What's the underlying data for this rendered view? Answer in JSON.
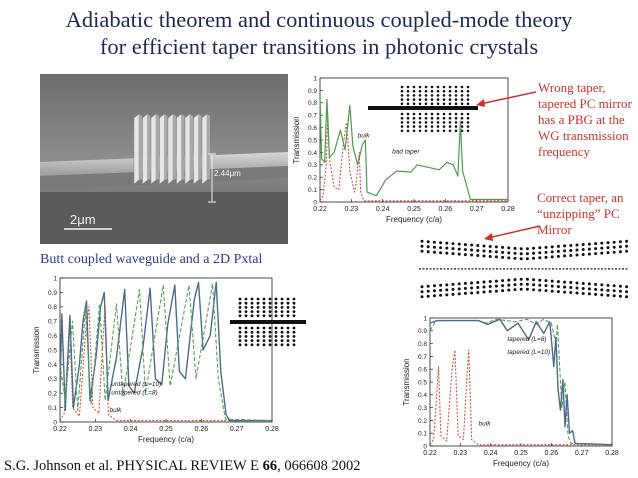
{
  "slide": {
    "title_line1": "Adiabatic theorem and continuous coupled-mode theory",
    "title_line2": "for efficient taper transitions in photonic crystals",
    "wrong_taper_note": [
      "Wrong taper,",
      "tapered PC mirror",
      "has a PBG at the",
      "WG transmission",
      "frequency"
    ],
    "correct_taper_note": [
      "Correct taper, an",
      "“unzipping” PC",
      "Mirror"
    ],
    "butt_coupled_caption": "Butt coupled waveguide and a 2D Pxtal",
    "citation_prefix": "S.G. Johnson et al. PHYSICAL REVIEW E ",
    "citation_volume": "66",
    "citation_suffix": ", 066608 2002"
  },
  "sem_image": {
    "scale_label": "2μm",
    "height_label": "2.44μm"
  },
  "colors": {
    "title": "#1b2a55",
    "note_red": "#c8322a",
    "caption_blue": "#2b3a8c",
    "bulk_curve": "#d0553a",
    "taper_curve": "#4f9a4f",
    "steel_curve": "#4a6c8c",
    "green_dashed": "#5aa05a"
  },
  "chart_data": [
    {
      "type": "line",
      "name_hint": "top",
      "xlabel": "Frequency  (c/a)",
      "ylabel": "Transmission",
      "xlim": [
        0.22,
        0.28
      ],
      "ylim": [
        0,
        1
      ],
      "x_ticks": [
        "0.22",
        "0.23",
        "0.24",
        "0.25",
        "0.26",
        "0.27",
        "0.28"
      ],
      "y_ticks": [
        "0",
        "0.1",
        "0.2",
        "0.3",
        "0.4",
        "0.5",
        "0.6",
        "0.7",
        "0.8",
        "0.9",
        "1"
      ],
      "annotations": [
        {
          "text": "bulk",
          "x": 0.232,
          "y": 0.52
        },
        {
          "text": "bad taper",
          "x": 0.243,
          "y": 0.39
        }
      ],
      "series": [
        {
          "style": "bulk",
          "points": [
            [
              0.22,
              0.01
            ],
            [
              0.221,
              0.05
            ],
            [
              0.222,
              0.3
            ],
            [
              0.2225,
              0.72
            ],
            [
              0.223,
              0.35
            ],
            [
              0.2245,
              0.12
            ],
            [
              0.226,
              0.1
            ],
            [
              0.2275,
              0.48
            ],
            [
              0.2285,
              0.64
            ],
            [
              0.2295,
              0.25
            ],
            [
              0.231,
              0.08
            ],
            [
              0.2315,
              0.14
            ],
            [
              0.2325,
              0.4
            ],
            [
              0.233,
              0.08
            ],
            [
              0.234,
              0.01
            ],
            [
              0.28,
              0.01
            ]
          ]
        },
        {
          "style": "taper",
          "points": [
            [
              0.22,
              0.85
            ],
            [
              0.2205,
              0.35
            ],
            [
              0.2215,
              0.32
            ],
            [
              0.2222,
              0.83
            ],
            [
              0.223,
              0.36
            ],
            [
              0.2245,
              0.4
            ],
            [
              0.2265,
              0.58
            ],
            [
              0.228,
              0.42
            ],
            [
              0.2295,
              0.78
            ],
            [
              0.2305,
              0.45
            ],
            [
              0.232,
              0.3
            ],
            [
              0.2335,
              0.46
            ],
            [
              0.2345,
              0.5
            ],
            [
              0.235,
              0.08
            ],
            [
              0.238,
              0.05
            ],
            [
              0.241,
              0.18
            ],
            [
              0.2445,
              0.25
            ],
            [
              0.249,
              0.24
            ],
            [
              0.251,
              0.3
            ],
            [
              0.2545,
              0.28
            ],
            [
              0.258,
              0.26
            ],
            [
              0.2605,
              0.32
            ],
            [
              0.2625,
              0.3
            ],
            [
              0.264,
              0.21
            ],
            [
              0.2648,
              0.65
            ],
            [
              0.2655,
              0.25
            ],
            [
              0.268,
              0.02
            ],
            [
              0.28,
              0.02
            ]
          ]
        }
      ]
    },
    {
      "type": "line",
      "name_hint": "bottom-left",
      "xlabel": "Frequency  (c/a)",
      "ylabel": "Transmission",
      "xlim": [
        0.22,
        0.28
      ],
      "ylim": [
        0,
        1
      ],
      "x_ticks": [
        "0.22",
        "0.23",
        "0.24",
        "0.25",
        "0.26",
        "0.27",
        "0.28"
      ],
      "y_ticks": [
        "0",
        "0.1",
        "0.2",
        "0.3",
        "0.4",
        "0.5",
        "0.6",
        "0.7",
        "0.8",
        "0.9",
        "1"
      ],
      "annotations": [
        {
          "text": "untapered (L=10)",
          "x": 0.2345,
          "y": 0.25
        },
        {
          "text": "untapered (L=8)",
          "x": 0.2345,
          "y": 0.19
        },
        {
          "text": "bulk",
          "x": 0.234,
          "y": 0.07
        }
      ],
      "series": [
        {
          "style": "bulk",
          "points": [
            [
              0.22,
              0.01
            ],
            [
              0.2212,
              0.06
            ],
            [
              0.2222,
              0.45
            ],
            [
              0.2228,
              0.66
            ],
            [
              0.2236,
              0.1
            ],
            [
              0.2255,
              0.04
            ],
            [
              0.2273,
              0.64
            ],
            [
              0.2282,
              0.8
            ],
            [
              0.2293,
              0.1
            ],
            [
              0.231,
              0.06
            ],
            [
              0.2322,
              0.6
            ],
            [
              0.2328,
              0.8
            ],
            [
              0.2337,
              0.05
            ],
            [
              0.236,
              0.01
            ],
            [
              0.28,
              0.01
            ]
          ]
        },
        {
          "style": "steel",
          "points": [
            [
              0.22,
              0.2
            ],
            [
              0.2205,
              0.75
            ],
            [
              0.2215,
              0.08
            ],
            [
              0.222,
              0.35
            ],
            [
              0.2228,
              0.74
            ],
            [
              0.2238,
              0.1
            ],
            [
              0.2255,
              0.4
            ],
            [
              0.2265,
              0.7
            ],
            [
              0.2275,
              0.84
            ],
            [
              0.2285,
              0.15
            ],
            [
              0.2302,
              0.45
            ],
            [
              0.2315,
              0.8
            ],
            [
              0.2325,
              0.9
            ],
            [
              0.2336,
              0.15
            ],
            [
              0.236,
              0.45
            ],
            [
              0.2383,
              0.92
            ],
            [
              0.2395,
              0.25
            ],
            [
              0.241,
              0.2
            ],
            [
              0.2435,
              0.52
            ],
            [
              0.2455,
              0.93
            ],
            [
              0.247,
              0.3
            ],
            [
              0.2488,
              0.26
            ],
            [
              0.2505,
              0.68
            ],
            [
              0.2525,
              0.95
            ],
            [
              0.2538,
              0.35
            ],
            [
              0.2555,
              0.3
            ],
            [
              0.258,
              0.85
            ],
            [
              0.2592,
              0.97
            ],
            [
              0.2605,
              0.5
            ],
            [
              0.2625,
              0.6
            ],
            [
              0.2642,
              0.97
            ],
            [
              0.2655,
              0.35
            ],
            [
              0.267,
              0.05
            ],
            [
              0.268,
              0.01
            ],
            [
              0.28,
              0.01
            ]
          ]
        },
        {
          "style": "green_dashed",
          "points": [
            [
              0.22,
              0.4
            ],
            [
              0.2215,
              0.15
            ],
            [
              0.2235,
              0.7
            ],
            [
              0.225,
              0.08
            ],
            [
              0.2272,
              0.78
            ],
            [
              0.2288,
              0.12
            ],
            [
              0.2312,
              0.82
            ],
            [
              0.2328,
              0.15
            ],
            [
              0.236,
              0.82
            ],
            [
              0.2378,
              0.18
            ],
            [
              0.2425,
              0.92
            ],
            [
              0.2442,
              0.2
            ],
            [
              0.2492,
              0.95
            ],
            [
              0.2512,
              0.25
            ],
            [
              0.2565,
              0.95
            ],
            [
              0.2585,
              0.3
            ],
            [
              0.2632,
              0.96
            ],
            [
              0.2648,
              0.3
            ],
            [
              0.2668,
              0.02
            ],
            [
              0.28,
              0.01
            ]
          ]
        }
      ]
    },
    {
      "type": "line",
      "name_hint": "bottom-right",
      "xlabel": "Frequency  (c/a)",
      "ylabel": "Transmission",
      "xlim": [
        0.22,
        0.28
      ],
      "ylim": [
        0,
        1
      ],
      "x_ticks": [
        "0.22",
        "0.23",
        "0.24",
        "0.25",
        "0.26",
        "0.27",
        "0.28"
      ],
      "y_ticks": [
        "0",
        "0.1",
        "0.2",
        "0.3",
        "0.4",
        "0.5",
        "0.6",
        "0.7",
        "0.8",
        "0.9",
        "1"
      ],
      "annotations": [
        {
          "text": "tapered (L=8)",
          "x": 0.2455,
          "y": 0.82
        },
        {
          "text": "tapered (L=10)",
          "x": 0.2455,
          "y": 0.72
        },
        {
          "text": "bulk",
          "x": 0.236,
          "y": 0.16
        }
      ],
      "series": [
        {
          "style": "bulk",
          "points": [
            [
              0.22,
              0.01
            ],
            [
              0.2212,
              0.05
            ],
            [
              0.2222,
              0.4
            ],
            [
              0.2228,
              0.62
            ],
            [
              0.2236,
              0.08
            ],
            [
              0.2255,
              0.04
            ],
            [
              0.2273,
              0.6
            ],
            [
              0.2282,
              0.75
            ],
            [
              0.2293,
              0.08
            ],
            [
              0.231,
              0.05
            ],
            [
              0.2322,
              0.55
            ],
            [
              0.2328,
              0.75
            ],
            [
              0.2337,
              0.05
            ],
            [
              0.236,
              0.01
            ],
            [
              0.28,
              0.01
            ]
          ]
        },
        {
          "style": "green_dashed",
          "points": [
            [
              0.22,
              0.9
            ],
            [
              0.222,
              0.98
            ],
            [
              0.236,
              0.98
            ],
            [
              0.2385,
              0.96
            ],
            [
              0.242,
              0.99
            ],
            [
              0.248,
              0.97
            ],
            [
              0.252,
              0.99
            ],
            [
              0.255,
              0.95
            ],
            [
              0.2575,
              0.99
            ],
            [
              0.26,
              0.96
            ],
            [
              0.2615,
              0.8
            ],
            [
              0.262,
              0.95
            ],
            [
              0.2628,
              0.6
            ],
            [
              0.2635,
              0.3
            ],
            [
              0.2645,
              0.5
            ],
            [
              0.2655,
              0.08
            ],
            [
              0.2665,
              0.02
            ],
            [
              0.28,
              0.01
            ]
          ]
        },
        {
          "style": "steel",
          "points": [
            [
              0.22,
              0.96
            ],
            [
              0.2222,
              0.98
            ],
            [
              0.236,
              0.98
            ],
            [
              0.239,
              0.95
            ],
            [
              0.243,
              0.99
            ],
            [
              0.2455,
              0.9
            ],
            [
              0.249,
              0.96
            ],
            [
              0.2525,
              0.83
            ],
            [
              0.255,
              0.97
            ],
            [
              0.2575,
              0.88
            ],
            [
              0.2595,
              0.97
            ],
            [
              0.2608,
              0.62
            ],
            [
              0.2615,
              0.85
            ],
            [
              0.2622,
              0.45
            ],
            [
              0.263,
              0.28
            ],
            [
              0.2638,
              0.52
            ],
            [
              0.2645,
              0.15
            ],
            [
              0.2652,
              0.4
            ],
            [
              0.266,
              0.1
            ],
            [
              0.267,
              0.12
            ],
            [
              0.2678,
              0.02
            ],
            [
              0.28,
              0.01
            ]
          ]
        }
      ]
    }
  ]
}
